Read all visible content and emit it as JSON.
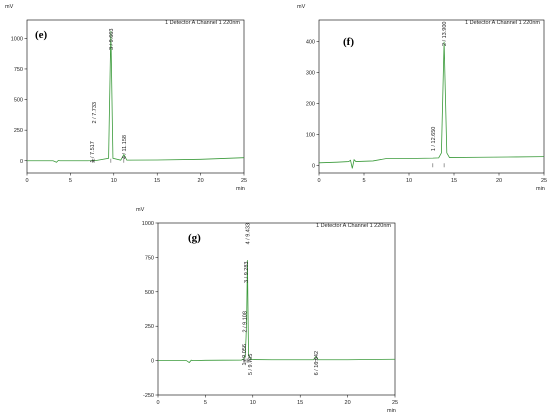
{
  "chart_data": [
    {
      "type": "line",
      "panel": "(e)",
      "detector": "1 Detector A Channel 1 220nm",
      "ylabel": "mV",
      "xlabel": "min",
      "xlim": [
        0,
        25
      ],
      "ylim": [
        -100,
        1150
      ],
      "xticks": [
        0,
        5,
        10,
        15,
        20,
        25
      ],
      "yticks": [
        0,
        250,
        500,
        750,
        1000
      ],
      "series": [
        {
          "x": [
            0,
            3.0,
            3.4,
            3.6,
            3.8,
            4.2,
            7.0,
            7.4,
            7.517,
            7.7,
            7.733,
            7.9,
            9.4,
            9.663,
            9.9,
            10.8,
            11.158,
            11.5,
            15,
            20,
            25
          ],
          "y": [
            0,
            0,
            -12,
            2,
            0,
            0,
            0,
            1,
            2,
            1,
            3,
            1,
            20,
            1060,
            20,
            5,
            50,
            5,
            6,
            12,
            25
          ]
        }
      ],
      "peaks": [
        {
          "label": "1 / 7.517",
          "x": 7.517,
          "top": 160
        },
        {
          "label": "2 / 7.733",
          "x": 7.733,
          "top": 480
        },
        {
          "label": "3 / 9.663",
          "x": 9.663,
          "top": 1080
        },
        {
          "label": "4 / 11.158",
          "x": 11.158,
          "top": 210
        }
      ]
    },
    {
      "type": "line",
      "panel": "(f)",
      "detector": "1 Detector A Channel 1 220nm",
      "ylabel": "mV",
      "xlabel": "min",
      "xlim": [
        0,
        25
      ],
      "ylim": [
        -25,
        470
      ],
      "xticks": [
        0,
        5,
        10,
        15,
        20,
        25
      ],
      "yticks": [
        0,
        100,
        200,
        300,
        400
      ],
      "series": [
        {
          "x": [
            0,
            2,
            3.3,
            3.5,
            3.7,
            3.9,
            4.1,
            6.0,
            7.5,
            10,
            12.65,
            13.3,
            13.6,
            13.9,
            14.2,
            14.5,
            18,
            22,
            25
          ],
          "y": [
            8,
            10,
            12,
            16,
            -10,
            18,
            12,
            14,
            22,
            22,
            23,
            24,
            40,
            400,
            40,
            25,
            26,
            27,
            28
          ]
        }
      ],
      "peaks": [
        {
          "label": "1 / 12.650",
          "x": 12.65,
          "top": 125
        },
        {
          "label": "2 / 13.900",
          "x": 13.9,
          "top": 465
        }
      ]
    },
    {
      "type": "line",
      "panel": "(g)",
      "detector": "1 Detector A Channel 1 220nm",
      "ylabel": "mV",
      "xlabel": "min",
      "xlim": [
        0,
        25
      ],
      "ylim": [
        -250,
        1000
      ],
      "xticks": [
        0,
        5,
        10,
        15,
        20,
        25
      ],
      "yticks": [
        -250,
        0,
        250,
        500,
        750,
        1000
      ],
      "series": [
        {
          "x": [
            0,
            3.0,
            3.3,
            3.5,
            3.7,
            5,
            8.8,
            9.056,
            9.105,
            9.2,
            9.283,
            9.35,
            9.433,
            9.55,
            9.8,
            12,
            16.4,
            16.642,
            16.9,
            20,
            25
          ],
          "y": [
            0,
            0,
            -14,
            3,
            0,
            2,
            4,
            12,
            20,
            40,
            160,
            300,
            730,
            40,
            8,
            6,
            6,
            28,
            6,
            6,
            10
          ]
        }
      ],
      "peaks": [
        {
          "label": "1 / 9.056",
          "x": 9.056,
          "top": 120
        },
        {
          "label": "2 / 9.108",
          "x": 9.108,
          "top": 360
        },
        {
          "label": "3 / 9.283",
          "x": 9.283,
          "top": 720
        },
        {
          "label": "4 / 9.433",
          "x": 9.433,
          "top": 1000
        },
        {
          "label": "5 / 9.705",
          "x": 9.705,
          "top": 50
        },
        {
          "label": "6 / 16.642",
          "x": 16.642,
          "top": 70
        }
      ]
    }
  ]
}
